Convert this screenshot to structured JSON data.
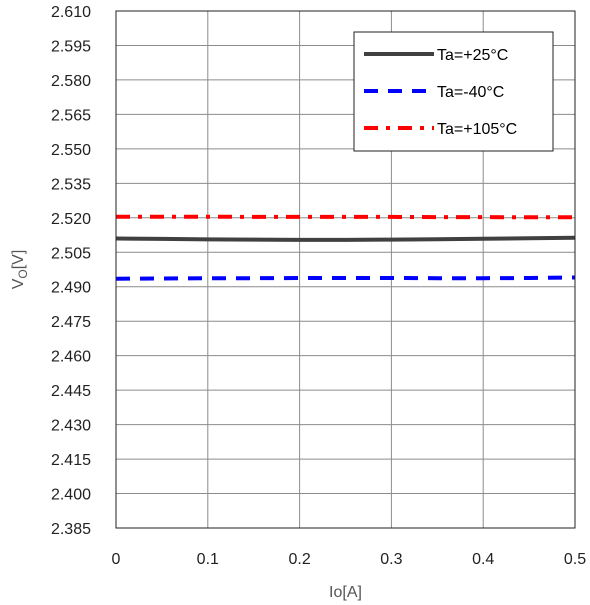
{
  "chart_data": {
    "type": "line",
    "xlabel": "Io[A]",
    "ylabel_main": "V",
    "ylabel_sub": "O",
    "ylabel_unit": "[V]",
    "xlim": [
      0,
      0.5
    ],
    "ylim": [
      2.385,
      2.61
    ],
    "x_ticks": [
      "0",
      "0.1",
      "0.2",
      "0.3",
      "0.4",
      "0.5"
    ],
    "y_ticks": [
      "2.385",
      "2.400",
      "2.415",
      "2.430",
      "2.445",
      "2.460",
      "2.475",
      "2.490",
      "2.505",
      "2.520",
      "2.535",
      "2.550",
      "2.565",
      "2.580",
      "2.595",
      "2.610"
    ],
    "grid": true,
    "legend_position": "top-right",
    "series": [
      {
        "name": "Ta=+25°C",
        "color": "#404040",
        "style": "solid",
        "x": [
          0,
          0.05,
          0.1,
          0.15,
          0.2,
          0.25,
          0.3,
          0.35,
          0.4,
          0.45,
          0.5
        ],
        "values": [
          2.511,
          2.5108,
          2.5106,
          2.5105,
          2.5104,
          2.5104,
          2.5105,
          2.5107,
          2.5109,
          2.5111,
          2.5113
        ]
      },
      {
        "name": "Ta=-40°C",
        "color": "#0000ff",
        "style": "dashed",
        "x": [
          0,
          0.05,
          0.1,
          0.15,
          0.2,
          0.25,
          0.3,
          0.35,
          0.4,
          0.45,
          0.5
        ],
        "values": [
          2.4935,
          2.4936,
          2.4937,
          2.4937,
          2.4938,
          2.4938,
          2.4938,
          2.4937,
          2.4937,
          2.4938,
          2.494
        ]
      },
      {
        "name": "Ta=+105°C",
        "color": "#ff0000",
        "style": "dashdot",
        "x": [
          0,
          0.05,
          0.1,
          0.15,
          0.2,
          0.25,
          0.3,
          0.35,
          0.4,
          0.45,
          0.5
        ],
        "values": [
          2.5205,
          2.5205,
          2.5205,
          2.5204,
          2.5204,
          2.5204,
          2.5204,
          2.5203,
          2.5203,
          2.5202,
          2.5202
        ]
      }
    ]
  }
}
